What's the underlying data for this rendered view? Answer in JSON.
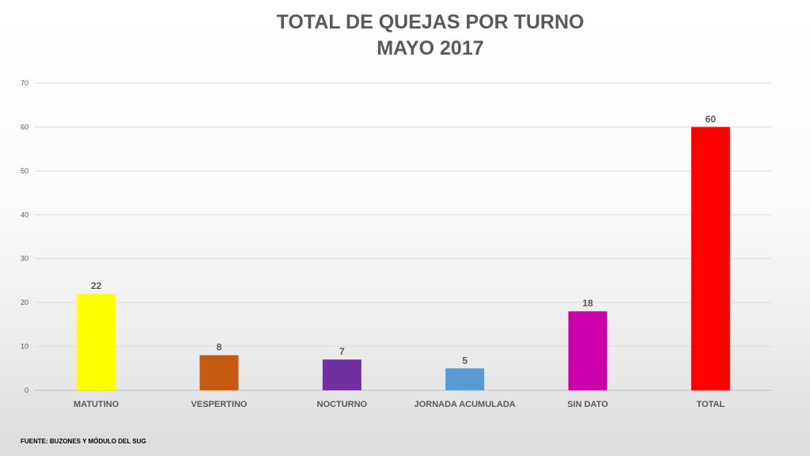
{
  "chart_data": {
    "type": "bar",
    "title": "TOTAL DE QUEJAS POR TURNO",
    "subtitle": "MAYO 2017",
    "categories": [
      "MATUTINO",
      "VESPERTINO",
      "NOCTURNO",
      "JORNADA ACUMULADA",
      "SIN DATO",
      "TOTAL"
    ],
    "values": [
      22,
      8,
      7,
      5,
      18,
      60
    ],
    "data_labels": [
      "22",
      "8",
      "7",
      "5",
      "18",
      "60"
    ],
    "bar_colors": [
      "#ffff00",
      "#c55a11",
      "#7030a0",
      "#5b9bd5",
      "#cc00aa",
      "#ff0000"
    ],
    "label_color": "#595959",
    "ylim": [
      0,
      70
    ],
    "yticks": [
      0,
      10,
      20,
      30,
      40,
      50,
      60,
      70
    ],
    "grid": true,
    "legend": "none"
  },
  "footer": {
    "source": "FUENTE: BUZONES Y MÓDULO DEL SUG"
  }
}
